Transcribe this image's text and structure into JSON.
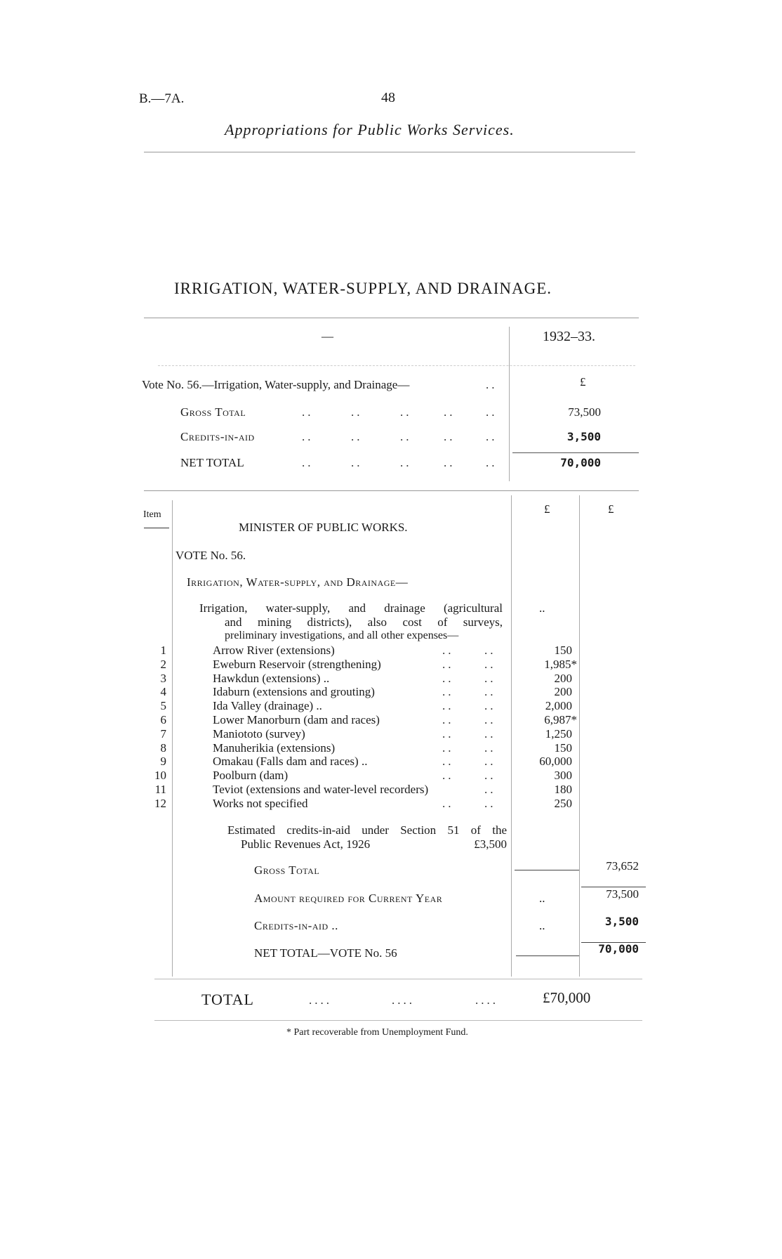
{
  "header": {
    "ref": "B.—7A.",
    "page_number": "48",
    "subtitle": "Appropriations for Public Works Services."
  },
  "title": "IRRIGATION, WATER-SUPPLY, AND DRAINAGE.",
  "summary": {
    "col_dash": "—",
    "col_year": "1932–33.",
    "vote_label": "Vote No. 56.—Irrigation, Water-supply, and Drainage—",
    "currency": "£",
    "rows": [
      {
        "label": "Gross Total",
        "value": "73,500"
      },
      {
        "label": "Credits-in-aid",
        "value": "3,500"
      },
      {
        "label": "NET TOTAL",
        "value": "70,000"
      }
    ]
  },
  "detail": {
    "item_header": "Item",
    "currency1": "£",
    "currency2": "£",
    "minister": "MINISTER OF PUBLIC WORKS.",
    "vote": "VOTE No. 56.",
    "heading": "Irrigation, Water-supply, and Drainage—",
    "para": [
      "Irrigation, water-supply, and drainage (agricultural",
      "and mining districts), also cost of surveys,",
      "preliminary investigations, and all other expenses—"
    ],
    "para_value": "..",
    "items": [
      {
        "no": "1",
        "label": "Arrow River (extensions)",
        "value": "150"
      },
      {
        "no": "2",
        "label": "Eweburn Reservoir (strengthening)",
        "value": "1,985*"
      },
      {
        "no": "3",
        "label": "Hawkdun (extensions) ..",
        "value": "200"
      },
      {
        "no": "4",
        "label": "Idaburn (extensions and grouting)",
        "value": "200"
      },
      {
        "no": "5",
        "label": "Ida Valley (drainage) ..",
        "value": "2,000"
      },
      {
        "no": "6",
        "label": "Lower Manorburn (dam and races)",
        "value": "6,987*"
      },
      {
        "no": "7",
        "label": "Maniototo (survey)",
        "value": "1,250"
      },
      {
        "no": "8",
        "label": "Manuherikia (extensions)",
        "value": "150"
      },
      {
        "no": "9",
        "label": "Omakau (Falls dam and races) ..",
        "value": "60,000"
      },
      {
        "no": "10",
        "label": "Poolburn (dam)",
        "value": "300"
      },
      {
        "no": "11",
        "label": "Teviot (extensions and water-level recorders)",
        "value": "180"
      },
      {
        "no": "12",
        "label": "Works not specified",
        "value": "250"
      }
    ],
    "credits_note": [
      "Estimated credits-in-aid under Section 51 of the",
      "Public Revenues Act, 1926"
    ],
    "credits_note_value": "£3,500",
    "totals": [
      {
        "label": "Gross Total",
        "col1": "",
        "col2": "73,652"
      },
      {
        "label": "Amount required for Current Year",
        "col1": "..",
        "col2": "73,500"
      },
      {
        "label": "Credits-in-aid ..",
        "col1": "..",
        "col2": "3,500"
      },
      {
        "label": "NET TOTAL—VOTE No. 56",
        "col1": "",
        "col2": "70,000"
      }
    ]
  },
  "grand_total": {
    "label": "TOTAL",
    "value": "£70,000"
  },
  "footnote": "* Part recoverable from Unemployment Fund."
}
